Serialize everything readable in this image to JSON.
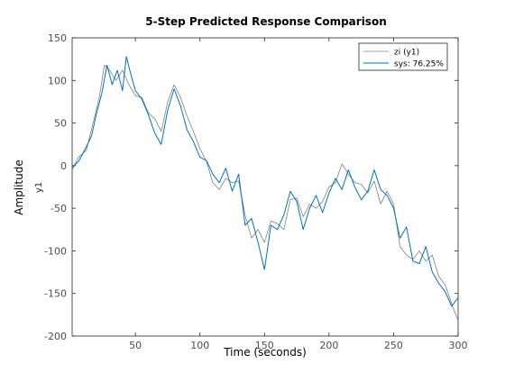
{
  "figure": {
    "title": "5-Step Predicted Response Comparison",
    "xlabel": "Time (seconds)",
    "ylabel_outer": "Amplitude",
    "ylabel_inner": "y1",
    "legend": {
      "entries": [
        "zi (y1)",
        "sys: 76.25%"
      ],
      "placement": "top-right"
    }
  },
  "colors": {
    "measured": "#808080",
    "predicted": "#0072BD",
    "axis": "#262626",
    "tick_label": "#4d4d4d"
  },
  "chart_data": {
    "type": "line",
    "title": "5-Step Predicted Response Comparison",
    "xlabel": "Time (seconds)",
    "ylabel": "y1",
    "xlim": [
      1,
      300
    ],
    "ylim": [
      -200,
      150
    ],
    "xticks": [
      50,
      100,
      150,
      200,
      250,
      300
    ],
    "yticks": [
      150,
      100,
      50,
      0,
      -50,
      -100,
      -150,
      -200
    ],
    "grid": false,
    "legend_placement": "top-right",
    "series": [
      {
        "name": "zi (y1)",
        "color": "#808080",
        "x": [
          1,
          6,
          12,
          18,
          22,
          26,
          30,
          35,
          40,
          45,
          50,
          55,
          60,
          65,
          70,
          75,
          80,
          85,
          90,
          95,
          100,
          105,
          110,
          115,
          120,
          125,
          130,
          135,
          140,
          145,
          150,
          155,
          160,
          165,
          170,
          175,
          180,
          185,
          190,
          195,
          200,
          205,
          210,
          215,
          220,
          225,
          230,
          235,
          240,
          245,
          250,
          255,
          260,
          265,
          270,
          275,
          280,
          285,
          290,
          295,
          300
        ],
        "y": [
          -5,
          10,
          18,
          55,
          80,
          118,
          112,
          100,
          112,
          95,
          82,
          80,
          62,
          55,
          40,
          75,
          95,
          80,
          58,
          40,
          20,
          5,
          -20,
          -28,
          -15,
          -20,
          -18,
          -58,
          -85,
          -75,
          -90,
          -65,
          -68,
          -75,
          -40,
          -38,
          -60,
          -45,
          -50,
          -42,
          -25,
          -20,
          2,
          -10,
          -20,
          -22,
          -32,
          -18,
          -45,
          -30,
          -45,
          -95,
          -105,
          -110,
          -100,
          -112,
          -105,
          -130,
          -140,
          -162,
          -182
        ]
      },
      {
        "name": "sys: 76.25%",
        "color": "#0072BD",
        "x": [
          1,
          6,
          12,
          16,
          20,
          24,
          28,
          32,
          36,
          40,
          43,
          46,
          50,
          55,
          60,
          65,
          70,
          75,
          80,
          85,
          90,
          95,
          100,
          105,
          110,
          115,
          120,
          125,
          130,
          135,
          140,
          145,
          150,
          155,
          160,
          165,
          170,
          175,
          180,
          185,
          190,
          195,
          200,
          205,
          210,
          215,
          220,
          225,
          230,
          235,
          240,
          245,
          250,
          255,
          260,
          265,
          270,
          275,
          280,
          285,
          290,
          295,
          300
        ],
        "y": [
          -2,
          5,
          22,
          35,
          62,
          85,
          118,
          95,
          112,
          88,
          128,
          110,
          88,
          78,
          60,
          38,
          25,
          65,
          90,
          70,
          42,
          28,
          10,
          6,
          -10,
          -20,
          -3,
          -30,
          -10,
          -70,
          -62,
          -90,
          -122,
          -70,
          -75,
          -58,
          -30,
          -42,
          -75,
          -50,
          -35,
          -55,
          -32,
          -15,
          -28,
          -5,
          -25,
          -40,
          -30,
          -5,
          -28,
          -35,
          -50,
          -85,
          -72,
          -112,
          -115,
          -95,
          -125,
          -138,
          -148,
          -165,
          -155
        ]
      }
    ]
  }
}
